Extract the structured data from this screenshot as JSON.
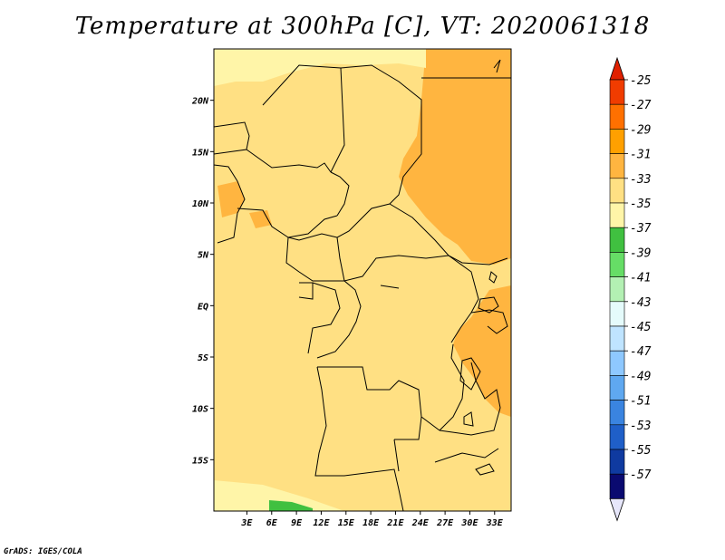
{
  "title": "Temperature at 300hPa [C], VT: 2020061318",
  "footer": "GrADS: IGES/COLA",
  "map": {
    "lon_range": [
      -1,
      35
    ],
    "lat_range": [
      -20,
      25
    ],
    "lon_ticks": [
      "3E",
      "6E",
      "9E",
      "12E",
      "15E",
      "18E",
      "21E",
      "24E",
      "27E",
      "30E",
      "33E"
    ],
    "lat_ticks": [
      "20N",
      "15N",
      "10N",
      "5N",
      "EQ",
      "5S",
      "10S",
      "15S"
    ],
    "background_fill": "#ffe083",
    "fields": [
      {
        "level": "-29 to -31",
        "color": "#ffb540",
        "area": "northeast and east"
      },
      {
        "level": "-33 to -35",
        "color": "#fff5a8",
        "area": "northwest"
      },
      {
        "level": "-37",
        "color": "#40c040",
        "area": "south"
      }
    ]
  },
  "colorbar": {
    "labels": [
      "-25",
      "-27",
      "-29",
      "-31",
      "-33",
      "-35",
      "-37",
      "-39",
      "-41",
      "-43",
      "-45",
      "-47",
      "-49",
      "-51",
      "-53",
      "-55",
      "-57"
    ],
    "colors": [
      "#f03c00",
      "#ff7000",
      "#ffa000",
      "#ffb540",
      "#ffe083",
      "#fff5a8",
      "#40c040",
      "#66dd66",
      "#b3f0b3",
      "#e5fbfb",
      "#bfe4ff",
      "#8ec8ff",
      "#5fa8f0",
      "#3a84e0",
      "#1f5fc8",
      "#0f3aa0",
      "#0a0a70"
    ],
    "top_arrow_color": "#e02000",
    "bottom_arrow_color": "#e6e6fa"
  }
}
